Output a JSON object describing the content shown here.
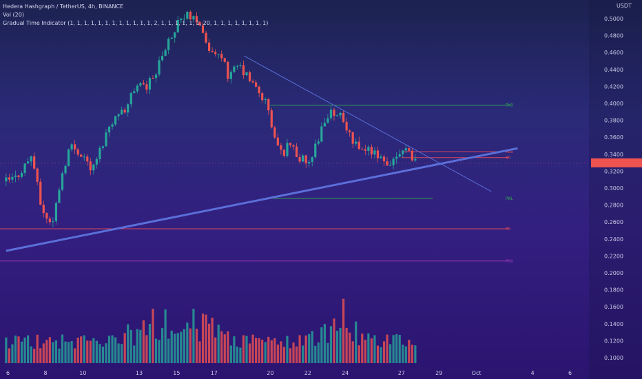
{
  "legend": {
    "title": "Hedera Hashgraph / TetherUS, 4h, BINANCE",
    "vol": "Vol (20)",
    "indicator": "Gradual Time Indicator (1, 1, 1, 1, 1, 1, 1, 1, 1, 1, 1, 1, 2, 1, 1, 1, 1, 1, 1, 20, 1, 1, 1, 1, 1, 1, 1, 1)"
  },
  "currency": "USDT",
  "colors": {
    "up": "#26a69a",
    "down": "#ef5350",
    "trend": "#5b6fd9",
    "level_green": "#2ea84f",
    "level_red": "#d8485a",
    "level_purple": "#9b35b0"
  },
  "chart_data": {
    "type": "candlestick",
    "symbol": "Hedera Hashgraph / TetherUS",
    "timeframe": "4h",
    "exchange": "BINANCE",
    "y_ticks": [
      "0.5000",
      "0.4800",
      "0.4600",
      "0.4400",
      "0.4200",
      "0.4000",
      "0.3800",
      "0.3600",
      "0.3400",
      "0.3200",
      "0.3000",
      "0.2800",
      "0.2600",
      "0.2400",
      "0.2200",
      "0.2000",
      "0.1800",
      "0.1600",
      "0.1400",
      "0.1200",
      "0.1000"
    ],
    "ylim": [
      0.088,
      0.512
    ],
    "x_ticks": [
      "6",
      "8",
      "10",
      "13",
      "15",
      "17",
      "20",
      "22",
      "24",
      "27",
      "29",
      "Oct",
      "4",
      "6"
    ],
    "x_tick_days": [
      6,
      8,
      10,
      13,
      15,
      17,
      20,
      22,
      24,
      27,
      29,
      31,
      34,
      36
    ],
    "price_path": [
      [
        5.9,
        0.308
      ],
      [
        6.4,
        0.312
      ],
      [
        7.0,
        0.33
      ],
      [
        7.3,
        0.34
      ],
      [
        7.5,
        0.31
      ],
      [
        7.7,
        0.285
      ],
      [
        8.0,
        0.265
      ],
      [
        8.4,
        0.26
      ],
      [
        8.8,
        0.31
      ],
      [
        9.3,
        0.35
      ],
      [
        10.0,
        0.34
      ],
      [
        10.5,
        0.32
      ],
      [
        11.0,
        0.35
      ],
      [
        11.5,
        0.38
      ],
      [
        12.2,
        0.39
      ],
      [
        12.8,
        0.42
      ],
      [
        13.4,
        0.42
      ],
      [
        13.8,
        0.43
      ],
      [
        14.3,
        0.46
      ],
      [
        14.8,
        0.48
      ],
      [
        15.2,
        0.5
      ],
      [
        15.6,
        0.505
      ],
      [
        16.0,
        0.495
      ],
      [
        16.5,
        0.48
      ],
      [
        16.8,
        0.46
      ],
      [
        17.4,
        0.455
      ],
      [
        17.8,
        0.43
      ],
      [
        18.3,
        0.445
      ],
      [
        18.8,
        0.43
      ],
      [
        19.3,
        0.415
      ],
      [
        19.8,
        0.4
      ],
      [
        20.2,
        0.36
      ],
      [
        20.6,
        0.34
      ],
      [
        21.1,
        0.355
      ],
      [
        21.5,
        0.335
      ],
      [
        22.0,
        0.33
      ],
      [
        22.4,
        0.35
      ],
      [
        22.9,
        0.38
      ],
      [
        23.4,
        0.39
      ],
      [
        23.9,
        0.38
      ],
      [
        24.2,
        0.365
      ],
      [
        24.6,
        0.35
      ],
      [
        25.2,
        0.345
      ],
      [
        25.6,
        0.34
      ],
      [
        26.2,
        0.325
      ],
      [
        26.7,
        0.34
      ],
      [
        27.2,
        0.35
      ],
      [
        27.5,
        0.34
      ],
      [
        27.8,
        0.33
      ]
    ],
    "volume": {
      "y_axis": "shared price axis (0.1000–0.2000 region)",
      "peak_days": [
        13.7,
        15.9,
        23.9
      ]
    },
    "levels": [
      {
        "label": "PWO",
        "price": 0.398,
        "color": "#2ea84f",
        "start_day": 20.0
      },
      {
        "label": "PDO",
        "price": 0.343,
        "color": "#d8485a",
        "start_day": 27.0
      },
      {
        "label": "WO",
        "price": 0.336,
        "color": "#d8485a",
        "start_day": 27.0
      },
      {
        "label": "PWL",
        "price": 0.288,
        "color": "#2ea84f",
        "start_day": 20.0
      },
      {
        "label": "MO",
        "price": 0.252,
        "color": "#d8485a",
        "start_day": 5.8
      },
      {
        "label": "PMO",
        "price": 0.214,
        "color": "#9b35b0",
        "start_day": 5.8
      }
    ],
    "trendlines": [
      {
        "name": "support",
        "from": [
          5.9,
          0.226
        ],
        "to": [
          33.2,
          0.347
        ],
        "width": 3
      },
      {
        "name": "resistance",
        "from": [
          18.6,
          0.456
        ],
        "to": [
          31.8,
          0.296
        ],
        "width": 1
      }
    ],
    "current_price_marker": 0.327,
    "grid": false,
    "legend_position": "top-left"
  }
}
